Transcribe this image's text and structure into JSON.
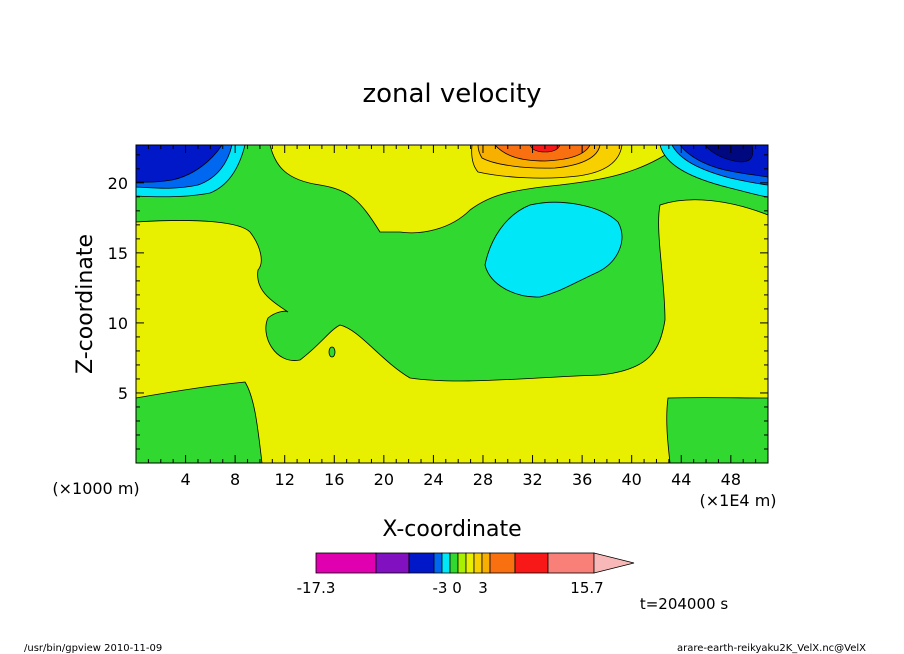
{
  "chart_data": {
    "type": "contour",
    "title": "zonal velocity",
    "xlabel": "X-coordinate",
    "ylabel": "Z-coordinate",
    "x_unit_left": "(×1000 m)",
    "x_unit_right": "(×1E4 m)",
    "x_ticks": [
      "4",
      "8",
      "12",
      "16",
      "20",
      "24",
      "28",
      "32",
      "36",
      "40",
      "44",
      "48"
    ],
    "y_ticks": [
      "5",
      "10",
      "15",
      "20"
    ],
    "xlim": [
      0,
      51
    ],
    "ylim": [
      0,
      22.7
    ],
    "colorbar": {
      "colors": [
        "#e000b0",
        "#8010c0",
        "#0018c8",
        "#0068f0",
        "#00e8f8",
        "#30d830",
        "#a8f000",
        "#e8f000",
        "#f8d000",
        "#f8b000",
        "#f87010",
        "#f81818",
        "#f88078",
        "#f8b8b8"
      ],
      "tick_labels": [
        "-17.3",
        "-3",
        "0",
        "3",
        "15.7"
      ]
    },
    "time_label": "t=204000 s",
    "regions": [
      {
        "name": "negative-core-left",
        "level": "negative"
      },
      {
        "name": "negative-core-right",
        "level": "negative"
      },
      {
        "name": "cyan-blob-center",
        "level": "negative"
      },
      {
        "name": "orange-jet-top",
        "level": "positive"
      }
    ]
  },
  "footer": {
    "left": "/usr/bin/gpview   2010-11-09",
    "right": "arare-earth-reikyaku2K_VelX.nc@VelX"
  }
}
